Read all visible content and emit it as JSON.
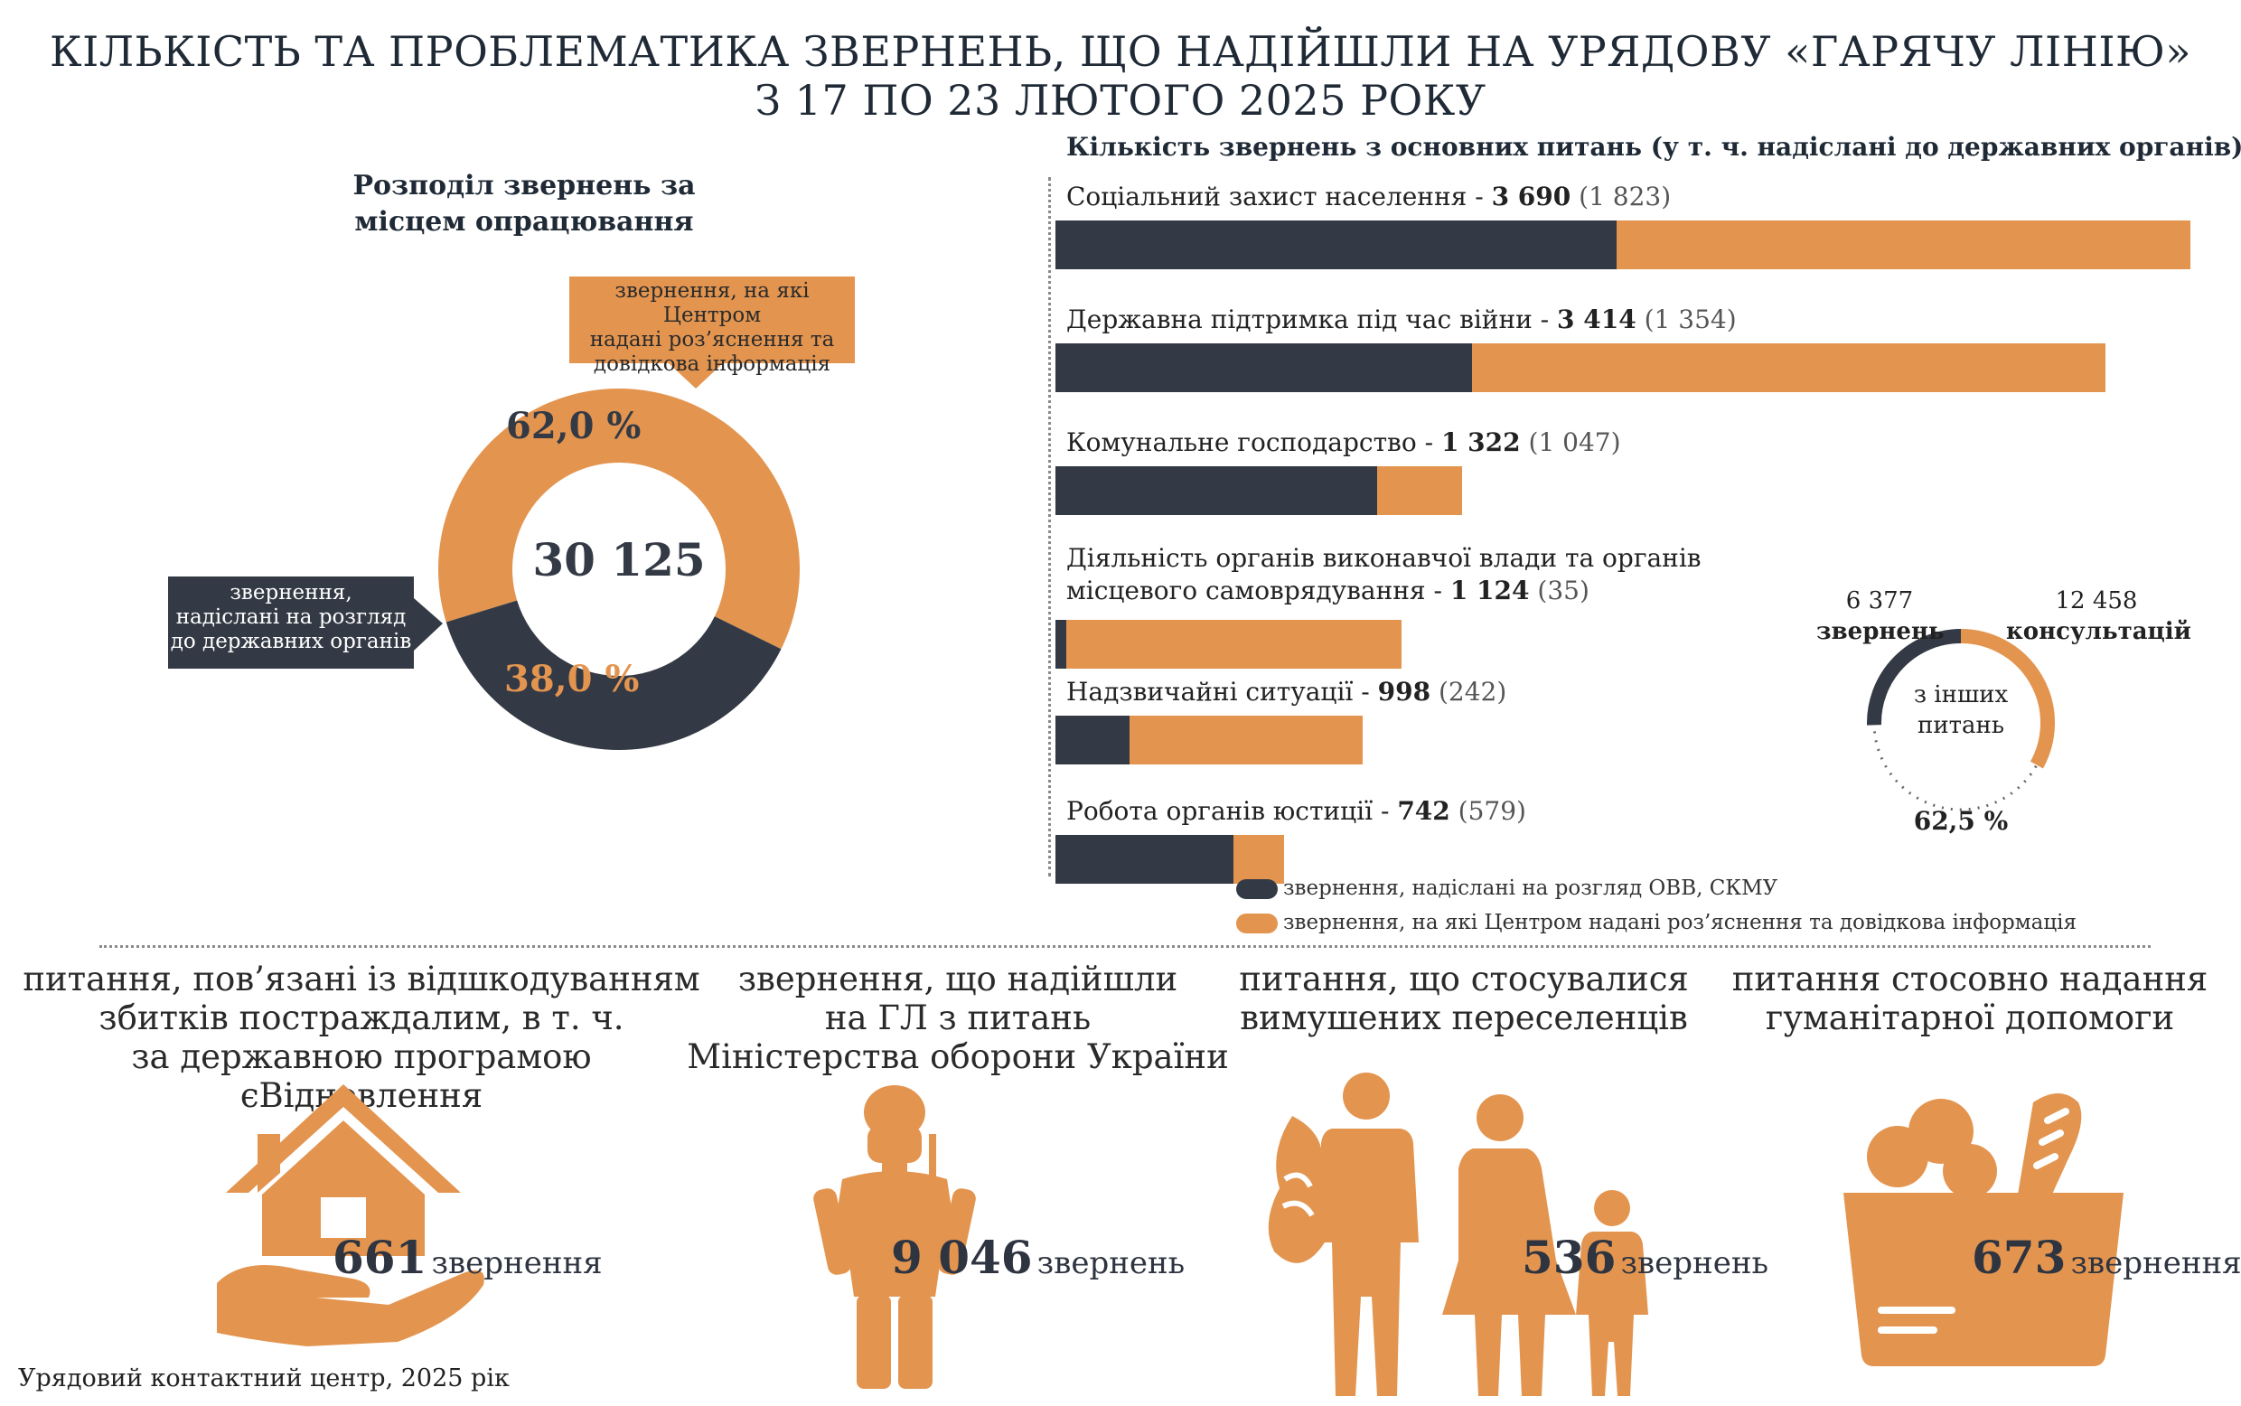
{
  "title": {
    "line1": "КІЛЬКІСТЬ ТА ПРОБЛЕМАТИКА ЗВЕРНЕНЬ, ЩО НАДІЙШЛИ НА УРЯДОВУ «ГАРЯЧУ ЛІНІЮ»",
    "line2": "З 17 ПО 23 ЛЮТОГО 2025 РОКУ"
  },
  "colors": {
    "dark": "#343a45",
    "orange": "#e39550"
  },
  "donut": {
    "heading_line1": "Розподіл звернень за",
    "heading_line2": "місцем опрацювання",
    "total": "30 125",
    "orange_pct_label": "62,0 %",
    "dark_pct_label": "38,0 %",
    "orange_callout_l1": "звернення, на які Центром",
    "orange_callout_l2": "надані роз’яснення та",
    "orange_callout_l3": "довідкова інформація",
    "dark_callout_l1": "звернення,",
    "dark_callout_l2": "надіслані на розгляд",
    "dark_callout_l3": "до державних органів"
  },
  "bars_heading": "Кількість звернень з основних питань (у т. ч. надіслані до державних органів)",
  "chart_data": [
    {
      "type": "pie",
      "title": "Розподіл звернень за місцем опрацювання",
      "total": 30125,
      "slices": [
        {
          "name": "звернення, на які Центром надані роз’яснення та довідкова інформація",
          "value": 62.0
        },
        {
          "name": "звернення, надіслані на розгляд до державних органів",
          "value": 38.0
        }
      ]
    },
    {
      "type": "bar",
      "title": "Кількість звернень з основних питань (у т. ч. надіслані до державних органів)",
      "categories": [
        "Соціальний захист населення",
        "Державна підтримка під час війни",
        "Комунальне господарство",
        "Діяльність органів виконавчої влади та органів місцевого самоврядування",
        "Надзвичайні ситуації",
        "Робота органів юстиції"
      ],
      "series": [
        {
          "name": "звернення, надіслані на розгляд ОВВ, СКМУ",
          "values": [
            1823,
            1354,
            1047,
            35,
            242,
            579
          ]
        },
        {
          "name": "звернення, на які Центром надані роз’яснення та довідкова інформація",
          "values": [
            1867,
            2060,
            275,
            1089,
            756,
            163
          ]
        }
      ],
      "totals": [
        3690,
        3414,
        1322,
        1124,
        998,
        742
      ],
      "xlim": [
        0,
        3690
      ]
    },
    {
      "type": "pie",
      "title": "з інших питань",
      "slices": [
        {
          "name": "звернень",
          "value": 6377
        },
        {
          "name": "консультацій",
          "value": 12458
        }
      ],
      "percent_label": "62,5 %"
    }
  ],
  "bars": [
    {
      "label_pre": "Соціальний захист населення - ",
      "total": "3 690",
      "sub": " (1 823)"
    },
    {
      "label_pre": "Державна підтримка під час війни - ",
      "total": "3 414",
      "sub": " (1 354)"
    },
    {
      "label_pre": "Комунальне господарство - ",
      "total": "1 322",
      "sub": " (1 047)"
    },
    {
      "label_pre": "Діяльність органів виконавчої влади та органів",
      "label_pre2": "місцевого самоврядування - ",
      "total": "1 124",
      "sub": " (35)"
    },
    {
      "label_pre": "Надзвичайні ситуації - ",
      "total": "998",
      "sub": " (242)"
    },
    {
      "label_pre": "Робота органів юстиції - ",
      "total": "742",
      "sub": " (579)"
    }
  ],
  "legend": {
    "dark": "звернення, надіслані на розгляд ОВВ, СКМУ",
    "orange": "звернення, на які Центром надані роз’яснення та довідкова інформація"
  },
  "other": {
    "left_num": "6 377",
    "left_word": "звернень",
    "right_num": "12 458",
    "right_word": "консультацій",
    "center_l1": "з інших",
    "center_l2": "питань",
    "pct": "62,5 %"
  },
  "categories": [
    {
      "title_l1": "питання, пов’язані із відшкодуванням",
      "title_l2": "збитків постраждалим, в т. ч.",
      "title_l3": "за державною програмою єВідновлення",
      "icon": "house-in-hand-icon",
      "number": "661",
      "unit": "звернення"
    },
    {
      "title_l1": "звернення, що надійшли",
      "title_l2": "на ГЛ з питань",
      "title_l3": "Міністерства оборони України",
      "icon": "soldier-icon",
      "number": "9 046",
      "unit": "звернень"
    },
    {
      "title_l1": "питання, що стосувалися",
      "title_l2": "вимушених переселенців",
      "icon": "displaced-family-icon",
      "number": "536",
      "unit": "звернень"
    },
    {
      "title_l1": "питання стосовно надання",
      "title_l2": "гуманітарної допомоги",
      "icon": "grocery-basket-icon",
      "number": "673",
      "unit": "звернення"
    }
  ],
  "footer": "Урядовий контактний центр, 2025 рік"
}
